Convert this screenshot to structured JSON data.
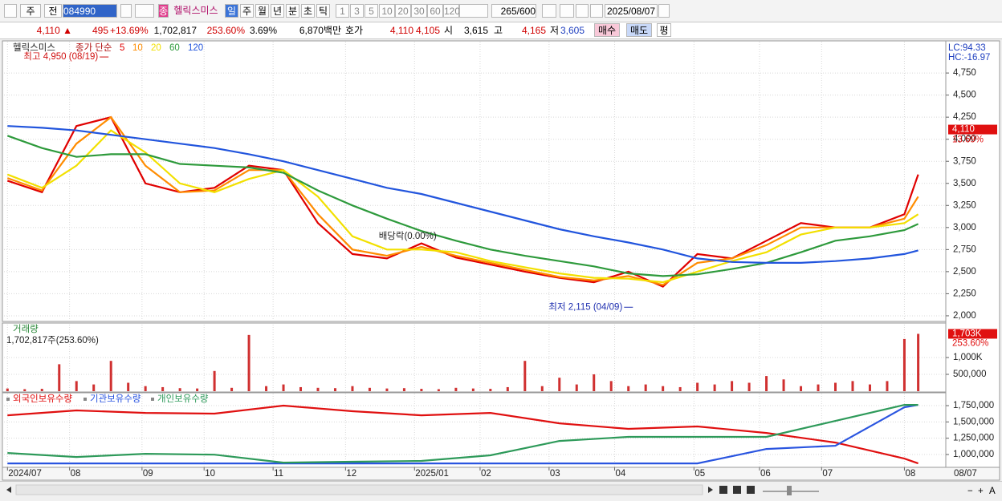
{
  "toolbar": {
    "buttons": [
      "주",
      "전",
      "084990",
      "종",
      "헬릭스미스",
      "일",
      "주",
      "월",
      "년",
      "분",
      "초",
      "틱",
      "1",
      "3",
      "5",
      "10",
      "20",
      "30",
      "60",
      "120",
      "265/600",
      "2025/08/07"
    ]
  },
  "quote": {
    "items": [
      {
        "text": "4,110 ▲",
        "color": "#d00000"
      },
      {
        "text": "495",
        "color": "#d00000"
      },
      {
        "text": "+13.69%",
        "color": "#d00000"
      },
      {
        "text": "1,702,817",
        "color": "#000000"
      },
      {
        "text": "253.60%",
        "color": "#d00000"
      },
      {
        "text": "3.69%",
        "color": "#000000"
      },
      {
        "text": "6,870백만",
        "color": "#000000"
      },
      {
        "text": "호가",
        "color": "#000000"
      },
      {
        "text": "4,110",
        "color": "#d00000"
      },
      {
        "text": "4,105",
        "color": "#d00000"
      },
      {
        "text": "시",
        "color": "#000000"
      },
      {
        "text": "3,615",
        "color": "#000000"
      },
      {
        "text": "고",
        "color": "#000000"
      },
      {
        "text": "4,165",
        "color": "#d00000"
      },
      {
        "text": "저",
        "color": "#000000"
      },
      {
        "text": "3,605",
        "color": "#2040c0"
      }
    ],
    "buttons": [
      "매수",
      "매도",
      "평"
    ]
  },
  "chart_data": [
    {
      "type": "line",
      "title": "헬릭스미스",
      "legend_label": "종가 단순",
      "right_labels": [
        "LC:94.33",
        "HC:-16.97"
      ],
      "last_price": {
        "value": 4110,
        "label": "4,110"
      },
      "last_change": "13.69%",
      "annotations": [
        {
          "text": "최고 4,950 (08/19)",
          "x": 30,
          "y": 4950
        },
        {
          "text": "배당락(0.00%)",
          "x": 116,
          "y": 2900
        },
        {
          "text": "최저 2,115 (04/09)",
          "x": 182,
          "y": 2115
        }
      ],
      "x": [
        0,
        10,
        20,
        30,
        40,
        50,
        60,
        70,
        80,
        90,
        100,
        110,
        120,
        130,
        140,
        150,
        160,
        170,
        180,
        190,
        200,
        210,
        220,
        230,
        240,
        250,
        260,
        264
      ],
      "xlim": [
        -1,
        272
      ],
      "ylim": [
        1945,
        5105
      ],
      "yticks": [
        {
          "value": 2000,
          "label": "2,000"
        },
        {
          "value": 2250,
          "label": "2,250"
        },
        {
          "value": 2500,
          "label": "2,500"
        },
        {
          "value": 2750,
          "label": "2,750"
        },
        {
          "value": 3000,
          "label": "3,000"
        },
        {
          "value": 3250,
          "label": "3,250"
        },
        {
          "value": 3500,
          "label": "3,500"
        },
        {
          "value": 3750,
          "label": "3,750"
        },
        {
          "value": 4000,
          "label": "4,000"
        },
        {
          "value": 4250,
          "label": "4,250"
        },
        {
          "value": 4500,
          "label": "4,500"
        },
        {
          "value": 4750,
          "label": "4,750"
        }
      ],
      "grid": true,
      "series": [
        {
          "name": "5",
          "color": "#e00000",
          "values": [
            3530,
            3400,
            4150,
            4250,
            3500,
            3400,
            3450,
            3700,
            3650,
            3050,
            2700,
            2650,
            2820,
            2660,
            2580,
            2500,
            2430,
            2380,
            2500,
            2330,
            2700,
            2650,
            2850,
            3050,
            3000,
            3000,
            3150,
            3600
          ]
        },
        {
          "name": "10",
          "color": "#ff8c00",
          "values": [
            3560,
            3420,
            3950,
            4250,
            3700,
            3400,
            3420,
            3650,
            3650,
            3150,
            2750,
            2680,
            2780,
            2680,
            2600,
            2520,
            2440,
            2400,
            2450,
            2350,
            2600,
            2650,
            2800,
            3000,
            3000,
            3000,
            3100,
            3350
          ]
        },
        {
          "name": "20",
          "color": "#f2e000",
          "values": [
            3600,
            3450,
            3700,
            4100,
            3850,
            3500,
            3400,
            3550,
            3650,
            3350,
            2900,
            2750,
            2750,
            2720,
            2620,
            2550,
            2480,
            2430,
            2420,
            2380,
            2500,
            2620,
            2720,
            2920,
            3000,
            3000,
            3050,
            3150
          ]
        },
        {
          "name": "60",
          "color": "#2e9a3c",
          "values": [
            4040,
            3900,
            3800,
            3830,
            3830,
            3720,
            3700,
            3680,
            3620,
            3420,
            3250,
            3100,
            2960,
            2850,
            2750,
            2680,
            2620,
            2560,
            2480,
            2450,
            2470,
            2530,
            2600,
            2720,
            2850,
            2900,
            2970,
            3040
          ]
        },
        {
          "name": "120",
          "color": "#2255dd",
          "values": [
            4150,
            4130,
            4100,
            4050,
            4000,
            3950,
            3900,
            3830,
            3750,
            3650,
            3550,
            3450,
            3380,
            3280,
            3180,
            3080,
            2980,
            2900,
            2830,
            2750,
            2650,
            2610,
            2600,
            2600,
            2620,
            2650,
            2700,
            2740
          ]
        }
      ]
    },
    {
      "type": "bar",
      "title": "거래량",
      "subtitle": "1,702,817주(253.60%)",
      "last_value": {
        "value": 1703000,
        "label": "1,703K"
      },
      "last_change": "253.60%",
      "color": "#d03030",
      "x": [
        0,
        5,
        10,
        15,
        20,
        25,
        30,
        35,
        40,
        45,
        50,
        55,
        60,
        65,
        70,
        75,
        80,
        85,
        90,
        95,
        100,
        105,
        110,
        115,
        120,
        125,
        130,
        135,
        140,
        145,
        150,
        155,
        160,
        165,
        170,
        175,
        180,
        185,
        190,
        195,
        200,
        205,
        210,
        215,
        220,
        225,
        230,
        235,
        240,
        245,
        250,
        255,
        260,
        264
      ],
      "values": [
        80000,
        60000,
        70000,
        800000,
        300000,
        200000,
        900000,
        250000,
        150000,
        120000,
        90000,
        80000,
        600000,
        100000,
        1670000,
        150000,
        200000,
        120000,
        100000,
        90000,
        150000,
        100000,
        80000,
        90000,
        70000,
        60000,
        100000,
        80000,
        70000,
        120000,
        900000,
        150000,
        400000,
        200000,
        500000,
        300000,
        150000,
        200000,
        150000,
        120000,
        250000,
        200000,
        300000,
        250000,
        450000,
        350000,
        150000,
        200000,
        250000,
        300000,
        200000,
        300000,
        1550000,
        1702817
      ],
      "xlim": [
        -1,
        272
      ],
      "ylim": [
        0,
        1976000
      ],
      "yticks": [
        {
          "value": 500000,
          "label": "500,000"
        },
        {
          "value": 1000000,
          "label": "1,000K"
        }
      ],
      "grid": true
    },
    {
      "type": "line",
      "x": [
        0,
        20,
        40,
        60,
        80,
        100,
        120,
        140,
        160,
        180,
        200,
        220,
        240,
        260,
        264
      ],
      "xlim": [
        -1,
        272
      ],
      "ylim": [
        803000,
        1935000
      ],
      "yticks": [
        {
          "value": 1000000,
          "label": "1,000,000"
        },
        {
          "value": 1250000,
          "label": "1,250,000"
        },
        {
          "value": 1500000,
          "label": "1,500,000"
        },
        {
          "value": 1750000,
          "label": "1,750,000"
        }
      ],
      "xticks": [
        {
          "value": 0,
          "label": "2024/07"
        },
        {
          "value": 18,
          "label": "08"
        },
        {
          "value": 39,
          "label": "09"
        },
        {
          "value": 57,
          "label": "10"
        },
        {
          "value": 77,
          "label": "11"
        },
        {
          "value": 98,
          "label": "12"
        },
        {
          "value": 118,
          "label": "2025/01"
        },
        {
          "value": 137,
          "label": "02"
        },
        {
          "value": 157,
          "label": "03"
        },
        {
          "value": 176,
          "label": "04"
        },
        {
          "value": 199,
          "label": "05"
        },
        {
          "value": 218,
          "label": "06"
        },
        {
          "value": 236,
          "label": "07"
        },
        {
          "value": 260,
          "label": "08"
        }
      ],
      "axis_end_label": "08/07",
      "grid": true,
      "series": [
        {
          "name": "외국인보유수량",
          "color": "#e01010",
          "values": [
            1602000,
            1676000,
            1639000,
            1627000,
            1750000,
            1664000,
            1602000,
            1639000,
            1479000,
            1393000,
            1430000,
            1331000,
            1183000,
            937000,
            863000
          ]
        },
        {
          "name": "기관보유수량",
          "color": "#2a55e0",
          "values": [
            863000,
            863000,
            863000,
            863000,
            863000,
            863000,
            863000,
            863000,
            863000,
            863000,
            863000,
            1085000,
            1134000,
            1725000,
            1762000
          ]
        },
        {
          "name": "개인보유수량",
          "color": "#2e9a5a",
          "values": [
            1023000,
            962000,
            1011000,
            998000,
            876000,
            889000,
            901000,
            988000,
            1208000,
            1270000,
            1270000,
            1270000,
            1516000,
            1762000,
            1762000
          ]
        }
      ]
    }
  ]
}
